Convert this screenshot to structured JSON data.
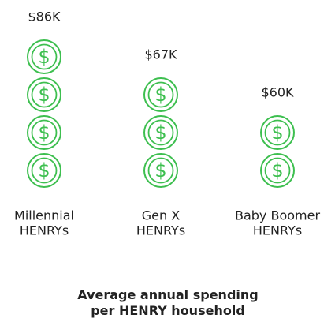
{
  "chart_data": {
    "type": "pictograph",
    "title": "Average annual spending per HENRY household",
    "categories": [
      [
        "Millennial",
        "HENRYs"
      ],
      [
        "Gen X",
        "HENRYs"
      ],
      [
        "Baby Boomer",
        "HENRYs"
      ]
    ],
    "values": [
      86000,
      67000,
      60000
    ],
    "value_labels": [
      "$86K",
      "$67K",
      "$60K"
    ],
    "icon_counts": [
      4,
      3,
      2
    ],
    "icon_symbol": "$",
    "color": "#3dbf4f"
  }
}
